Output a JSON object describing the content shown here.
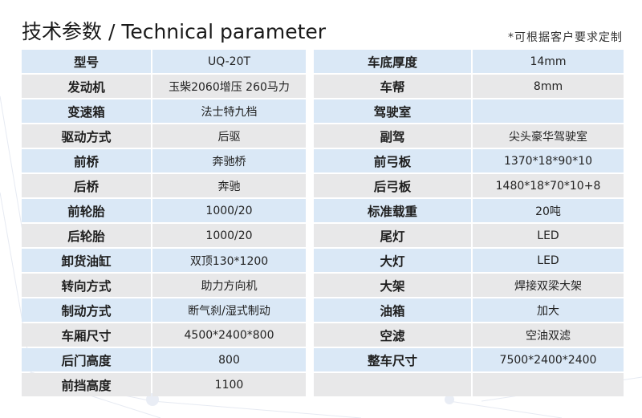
{
  "title": "技术参数 / Technical parameter",
  "note": "*可根据客户要求定制",
  "colors": {
    "row_blue": "#dae8f6",
    "row_gray": "#e8e8e9"
  },
  "left": [
    {
      "k": "型号",
      "v": "UQ-20T"
    },
    {
      "k": "发动机",
      "v": "玉柴2060增压  260马力"
    },
    {
      "k": "变速箱",
      "v": "法士特九档"
    },
    {
      "k": "驱动方式",
      "v": "后驱"
    },
    {
      "k": "前桥",
      "v": "奔驰桥"
    },
    {
      "k": "后桥",
      "v": "奔驰"
    },
    {
      "k": "前轮胎",
      "v": "1000/20"
    },
    {
      "k": "后轮胎",
      "v": "1000/20"
    },
    {
      "k": "卸货油缸",
      "v": "双顶130*1200"
    },
    {
      "k": "转向方式",
      "v": "助力方向机"
    },
    {
      "k": "制动方式",
      "v": "断气刹/湿式制动"
    },
    {
      "k": "车厢尺寸",
      "v": "4500*2400*800"
    },
    {
      "k": "后门高度",
      "v": "800"
    },
    {
      "k": "前挡高度",
      "v": "1100"
    }
  ],
  "right": [
    {
      "k": "车底厚度",
      "v": "14mm"
    },
    {
      "k": "车帮",
      "v": "8mm"
    },
    {
      "k": "驾驶室",
      "v": ""
    },
    {
      "k": "副驾",
      "v": "尖头豪华驾驶室"
    },
    {
      "k": "前弓板",
      "v": "1370*18*90*10"
    },
    {
      "k": "后弓板",
      "v": "1480*18*70*10+8"
    },
    {
      "k": "标准载重",
      "v": "20吨"
    },
    {
      "k": "尾灯",
      "v": "LED"
    },
    {
      "k": "大灯",
      "v": "LED"
    },
    {
      "k": "大架",
      "v": "焊接双梁大架"
    },
    {
      "k": "油箱",
      "v": "加大"
    },
    {
      "k": "空滤",
      "v": "空油双滤"
    },
    {
      "k": "整车尺寸",
      "v": "7500*2400*2400"
    },
    {
      "k": "",
      "v": ""
    }
  ]
}
